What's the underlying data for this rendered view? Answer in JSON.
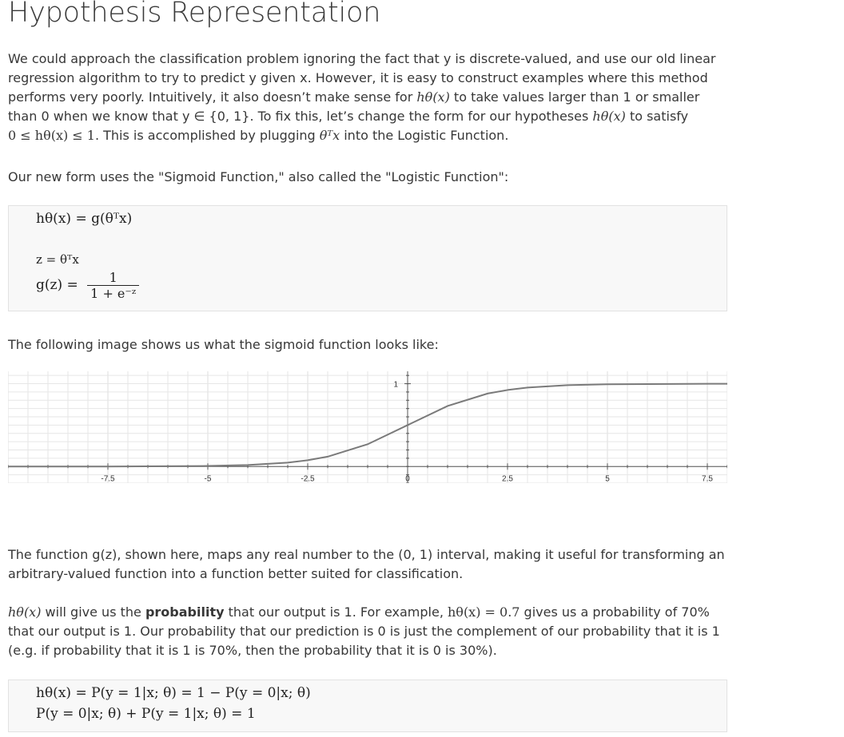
{
  "title": "Hypothesis Representation",
  "intro": {
    "t1": "We could approach the classification problem ignoring the fact that y is discrete-valued, and use our old linear regression algorithm to try to predict y given x. However, it is easy to construct examples where this method performs very poorly. Intuitively, it also doesn’t make sense for ",
    "m1": "hθ(x)",
    "t2": " to take values larger than 1 or smaller than 0 when we know that y ∈ {0, 1}. To fix this, let’s change the form for our hypotheses ",
    "m2": "hθ(x)",
    "t3": " to satisfy ",
    "m3": "0 ≤ hθ(x) ≤ 1",
    "t4": ". This is accomplished by plugging ",
    "m4": "θᵀx",
    "t5": " into the Logistic Function."
  },
  "sigmoid_intro": "Our new form uses the \"Sigmoid Function,\" also called the \"Logistic Function\":",
  "eq_box1": {
    "line1": "hθ(x) = g(θᵀx)",
    "line2": "z = θᵀx",
    "line3_lhs": "g(z) =",
    "line3_num": "1",
    "line3_den": "1 + e⁻ᶻ"
  },
  "image_intro": "The following image shows us what the sigmoid function looks like:",
  "chart_data": {
    "type": "line",
    "function": "sigmoid",
    "x_ticks": [
      "-7.5",
      "-5",
      "-2.5",
      "0",
      "2.5",
      "5",
      "7.5"
    ],
    "y_ticks": [
      "1"
    ],
    "xlim": [
      -10,
      8
    ],
    "ylim": [
      -0.2,
      1.15
    ],
    "grid": true,
    "series": [
      {
        "x": [
          -10,
          -7.5,
          -5,
          -4,
          -3,
          -2.5,
          -2,
          -1,
          0,
          1,
          2,
          2.5,
          3,
          4,
          5,
          7.5,
          8
        ],
        "values": [
          4.54e-05,
          0.00055,
          0.0067,
          0.018,
          0.047,
          0.076,
          0.119,
          0.269,
          0.5,
          0.731,
          0.881,
          0.924,
          0.953,
          0.982,
          0.993,
          0.9994,
          0.9997
        ]
      }
    ],
    "colors": {
      "line": "#7a7a7a",
      "grid": "#e6e6e6",
      "axis": "#555555"
    }
  },
  "para_g": "The function g(z), shown here, maps any real number to the (0, 1) interval, making it useful for transforming an arbitrary-valued function into a function better suited for classification.",
  "prob": {
    "m1": "hθ(x)",
    "t1": " will give us the ",
    "bold": "probability",
    "t2": " that our output is 1. For example, ",
    "m2": "hθ(x) = 0.7",
    "t3": " gives us a probability of 70% that our output is 1. Our probability that our prediction is 0 is just the complement of our probability that it is 1 (e.g. if probability that it is 1 is 70%, then the probability that it is 0 is 30%)."
  },
  "eq_box2": {
    "line1": "hθ(x) = P(y = 1|x; θ) = 1 − P(y = 0|x; θ)",
    "line2": "P(y = 0|x; θ) + P(y = 1|x; θ) = 1"
  }
}
